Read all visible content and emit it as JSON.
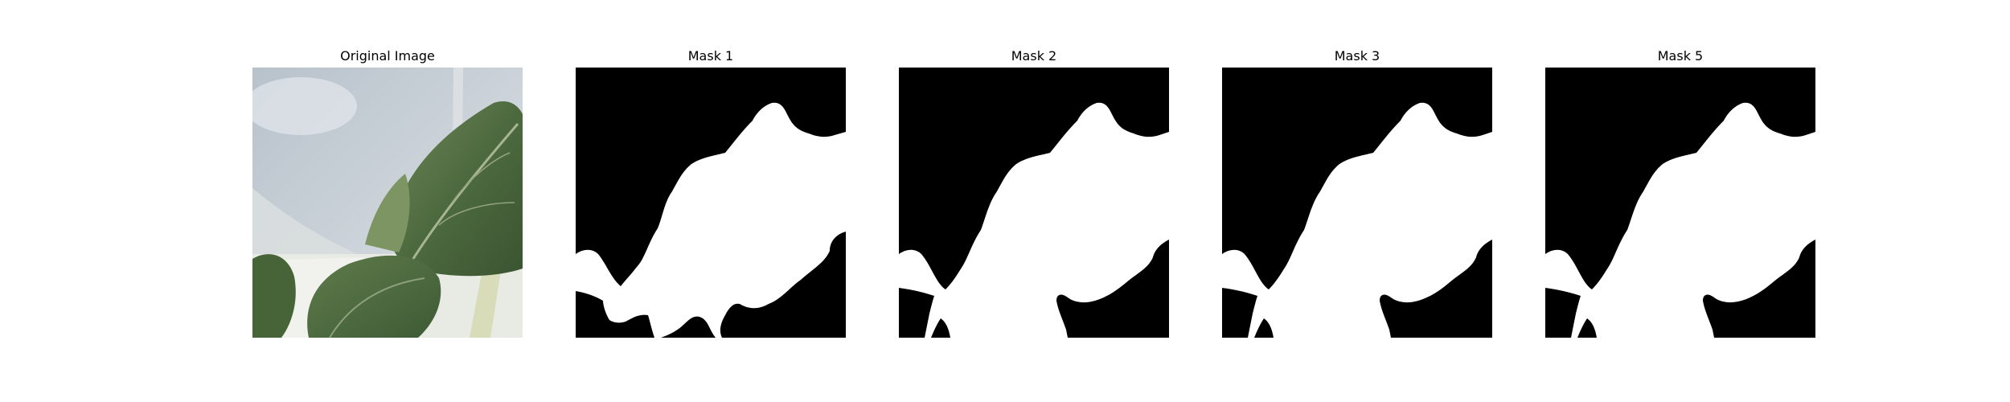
{
  "panels": [
    {
      "title": "Original Image",
      "kind": "photo"
    },
    {
      "title": "Mask 1",
      "kind": "mask"
    },
    {
      "title": "Mask 2",
      "kind": "mask"
    },
    {
      "title": "Mask 3",
      "kind": "mask"
    },
    {
      "title": "Mask 5",
      "kind": "mask"
    }
  ],
  "colors": {
    "mask_background": "#000000",
    "mask_foreground": "#ffffff",
    "leaf_dark": "#3f5a36",
    "leaf_mid": "#5d7a49",
    "leaf_light": "#8fa07a",
    "background_wall": "#c9d0d6",
    "background_surface": "#e4e6e1"
  }
}
